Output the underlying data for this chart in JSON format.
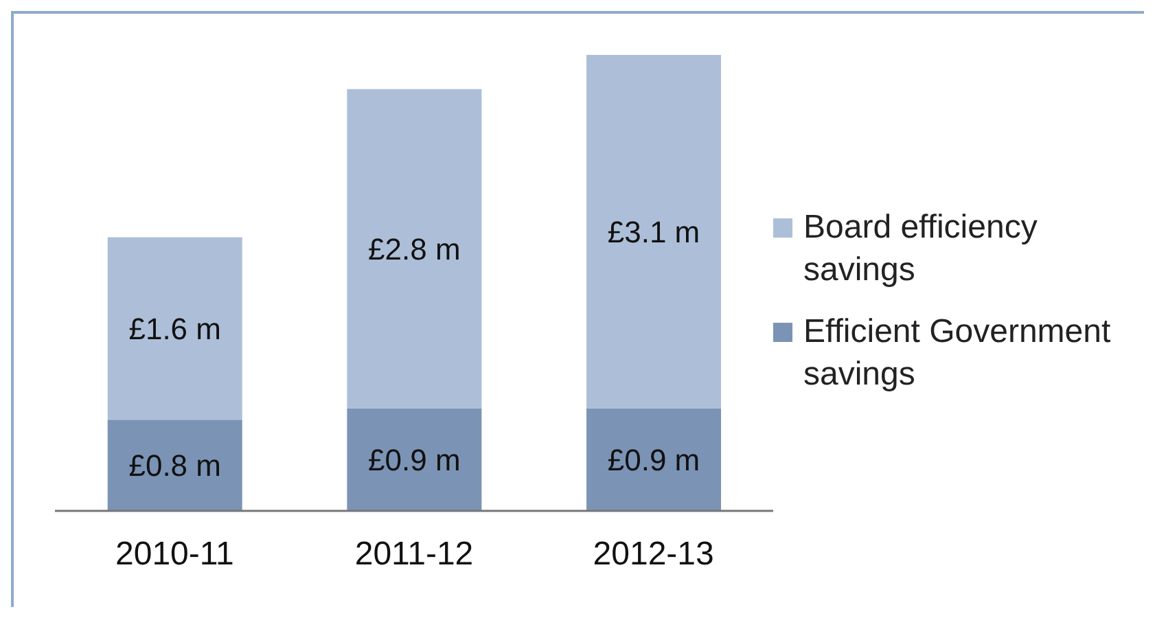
{
  "chart_data": {
    "type": "bar",
    "stacked": true,
    "categories": [
      "2010-11",
      "2011-12",
      "2012-13"
    ],
    "series": [
      {
        "name": "Efficient Government savings",
        "color": "#7b93b5",
        "values": [
          0.8,
          0.9,
          0.9
        ],
        "value_labels": [
          "£0.8 m",
          "£0.9 m",
          "£0.9 m"
        ]
      },
      {
        "name": "Board efficiency savings",
        "color": "#adbfd8",
        "values": [
          1.6,
          2.8,
          3.1
        ],
        "value_labels": [
          "£1.6 m",
          "£2.8 m",
          "£3.1 m"
        ]
      }
    ],
    "legend": "right",
    "grid": false
  }
}
